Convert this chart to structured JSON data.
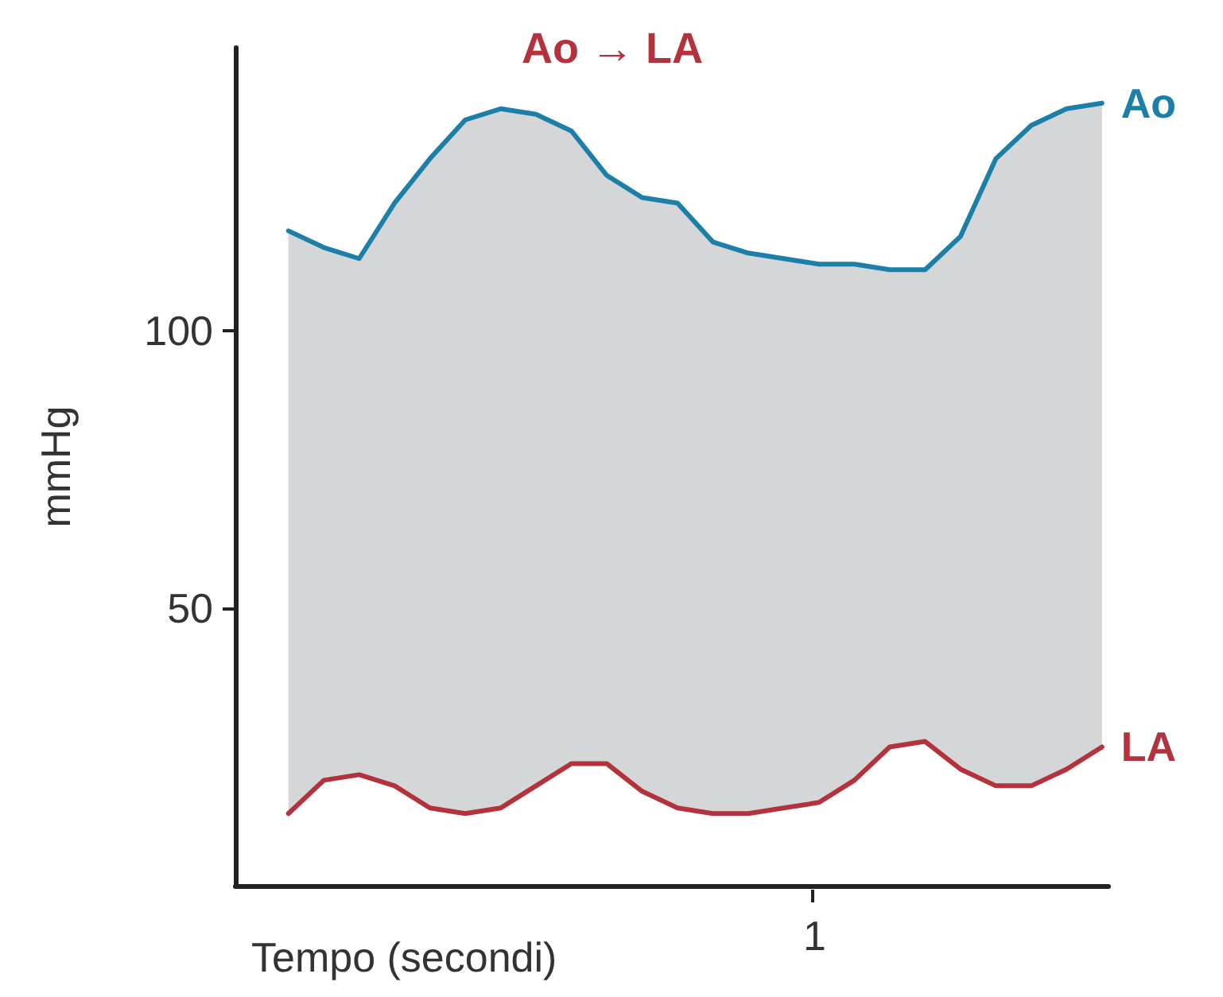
{
  "chart_data": {
    "type": "line",
    "title": "Ao → LA",
    "xlabel": "Tempo (secondi)",
    "ylabel": "mmHg",
    "categories": [
      null,
      null,
      null,
      null,
      null,
      null,
      null,
      null,
      null,
      null,
      null,
      null,
      null,
      null,
      null,
      null,
      null,
      null,
      null,
      null,
      null,
      null,
      null,
      null
    ],
    "series": [
      {
        "name": "Ao",
        "color": "#1b7fa8",
        "values": [
          118,
          115,
          113,
          123,
          131,
          138,
          140,
          139,
          136,
          128,
          124,
          123,
          116,
          114,
          113,
          112,
          112,
          111,
          111,
          117,
          131,
          137,
          140,
          141
        ],
        "upper": [
          118,
          115,
          113,
          123,
          131,
          138,
          140,
          139,
          136,
          128,
          124,
          123,
          116,
          114,
          113,
          112,
          112,
          111,
          111,
          117,
          131,
          137,
          140,
          141
        ],
        "lower": [
          13,
          19,
          20,
          18,
          14,
          13,
          14,
          18,
          22,
          22,
          17,
          14,
          13,
          13,
          14,
          15,
          19,
          25,
          26,
          21,
          18,
          18,
          21,
          25
        ]
      },
      {
        "name": "LA",
        "color": "#b3323b",
        "values": [
          13,
          19,
          20,
          18,
          14,
          13,
          14,
          18,
          22,
          22,
          17,
          14,
          13,
          13,
          14,
          15,
          19,
          25,
          26,
          21,
          18,
          18,
          21,
          25
        ]
      }
    ],
    "annotations": [
      "1"
    ],
    "ylim": [
      0,
      151
    ],
    "yticks": [
      50,
      100
    ],
    "grid": false,
    "legend": false,
    "marker": "none",
    "line_style": "solid"
  }
}
